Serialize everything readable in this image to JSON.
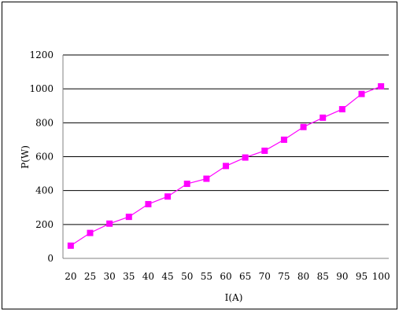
{
  "chart_data": {
    "type": "line",
    "title": "",
    "xlabel": "I(A)",
    "ylabel": "P(W)",
    "x": [
      20,
      25,
      30,
      35,
      40,
      45,
      50,
      55,
      60,
      65,
      70,
      75,
      80,
      85,
      90,
      95,
      100
    ],
    "series": [
      {
        "name": "",
        "color": "#ff00ff",
        "marker": "square",
        "values": [
          75,
          150,
          205,
          245,
          320,
          365,
          440,
          470,
          545,
          595,
          635,
          700,
          775,
          830,
          880,
          970,
          1015
        ]
      }
    ],
    "x_tick_labels": [
      "20",
      "25",
      "30",
      "35",
      "40",
      "45",
      "50",
      "55",
      "60",
      "65",
      "70",
      "75",
      "80",
      "85",
      "90",
      "95",
      "100"
    ],
    "y_tick_labels": [
      "0",
      "200",
      "400",
      "600",
      "800",
      "1000",
      "1200"
    ],
    "ylim": [
      0,
      1200
    ],
    "grid": "horizontal",
    "legend": "none"
  }
}
